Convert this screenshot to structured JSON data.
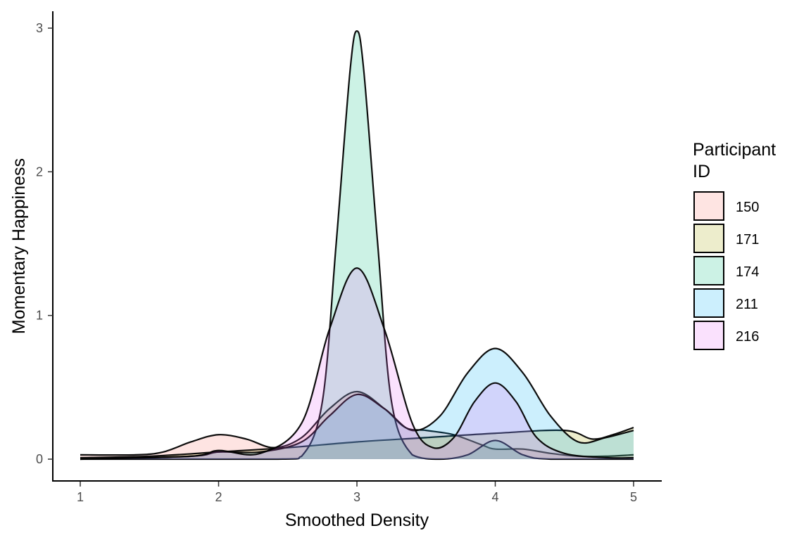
{
  "chart_data": {
    "type": "area",
    "title": "",
    "xlabel": "Smoothed Density",
    "ylabel": "Momentary Happiness",
    "xlim": [
      0.8,
      5.2
    ],
    "ylim": [
      -0.15,
      3.1
    ],
    "x_ticks": [
      1,
      2,
      3,
      4,
      5
    ],
    "x_tick_labels": [
      "1",
      "2",
      "3",
      "4",
      "5"
    ],
    "y_ticks": [
      0,
      1,
      2,
      3
    ],
    "y_tick_labels": [
      "0",
      "1",
      "2",
      "3"
    ],
    "grid": false,
    "legend": {
      "title_lines": [
        "Participant",
        "ID"
      ],
      "position": "right"
    },
    "series": [
      {
        "name": "150",
        "color": "#F8766D",
        "points": [
          [
            1.0,
            0.03
          ],
          [
            1.4,
            0.03
          ],
          [
            1.6,
            0.05
          ],
          [
            1.8,
            0.12
          ],
          [
            2.0,
            0.17
          ],
          [
            2.2,
            0.14
          ],
          [
            2.4,
            0.08
          ],
          [
            2.6,
            0.15
          ],
          [
            2.8,
            0.35
          ],
          [
            3.0,
            0.47
          ],
          [
            3.2,
            0.35
          ],
          [
            3.35,
            0.22
          ],
          [
            3.5,
            0.2
          ],
          [
            3.7,
            0.17
          ],
          [
            3.9,
            0.1
          ],
          [
            4.0,
            0.07
          ],
          [
            4.2,
            0.07
          ],
          [
            4.4,
            0.04
          ],
          [
            4.6,
            0.02
          ],
          [
            4.8,
            0.02
          ],
          [
            5.0,
            0.03
          ]
        ]
      },
      {
        "name": "171",
        "color": "#A3A500",
        "points": [
          [
            1.0,
            0.01
          ],
          [
            1.5,
            0.02
          ],
          [
            2.0,
            0.05
          ],
          [
            2.5,
            0.08
          ],
          [
            3.0,
            0.12
          ],
          [
            3.5,
            0.15
          ],
          [
            4.0,
            0.18
          ],
          [
            4.5,
            0.2
          ],
          [
            4.7,
            0.14
          ],
          [
            4.85,
            0.17
          ],
          [
            5.0,
            0.22
          ]
        ]
      },
      {
        "name": "174",
        "color": "#00BF7D",
        "points": [
          [
            1.0,
            0.0
          ],
          [
            2.4,
            0.0
          ],
          [
            2.6,
            0.02
          ],
          [
            2.75,
            0.4
          ],
          [
            2.85,
            1.5
          ],
          [
            2.95,
            2.7
          ],
          [
            3.0,
            2.98
          ],
          [
            3.05,
            2.7
          ],
          [
            3.15,
            1.5
          ],
          [
            3.25,
            0.4
          ],
          [
            3.4,
            0.03
          ],
          [
            3.6,
            0.0
          ],
          [
            3.8,
            0.03
          ],
          [
            4.0,
            0.13
          ],
          [
            4.2,
            0.03
          ],
          [
            4.4,
            0.0
          ],
          [
            5.0,
            0.0
          ]
        ]
      },
      {
        "name": "211",
        "color": "#00B0F6",
        "points": [
          [
            1.0,
            0.0
          ],
          [
            1.8,
            0.02
          ],
          [
            2.0,
            0.05
          ],
          [
            2.3,
            0.05
          ],
          [
            2.6,
            0.12
          ],
          [
            2.8,
            0.3
          ],
          [
            3.0,
            0.45
          ],
          [
            3.2,
            0.35
          ],
          [
            3.4,
            0.2
          ],
          [
            3.6,
            0.3
          ],
          [
            3.8,
            0.6
          ],
          [
            4.0,
            0.77
          ],
          [
            4.2,
            0.6
          ],
          [
            4.4,
            0.3
          ],
          [
            4.6,
            0.12
          ],
          [
            4.8,
            0.15
          ],
          [
            5.0,
            0.2
          ]
        ]
      },
      {
        "name": "216",
        "color": "#E76BF3",
        "points": [
          [
            1.0,
            0.0
          ],
          [
            1.8,
            0.02
          ],
          [
            2.0,
            0.06
          ],
          [
            2.3,
            0.04
          ],
          [
            2.6,
            0.25
          ],
          [
            2.8,
            0.9
          ],
          [
            3.0,
            1.33
          ],
          [
            3.2,
            0.9
          ],
          [
            3.4,
            0.25
          ],
          [
            3.55,
            0.08
          ],
          [
            3.7,
            0.15
          ],
          [
            3.85,
            0.4
          ],
          [
            4.0,
            0.53
          ],
          [
            4.15,
            0.4
          ],
          [
            4.3,
            0.15
          ],
          [
            4.5,
            0.04
          ],
          [
            4.8,
            0.01
          ],
          [
            5.0,
            0.01
          ]
        ]
      }
    ]
  }
}
